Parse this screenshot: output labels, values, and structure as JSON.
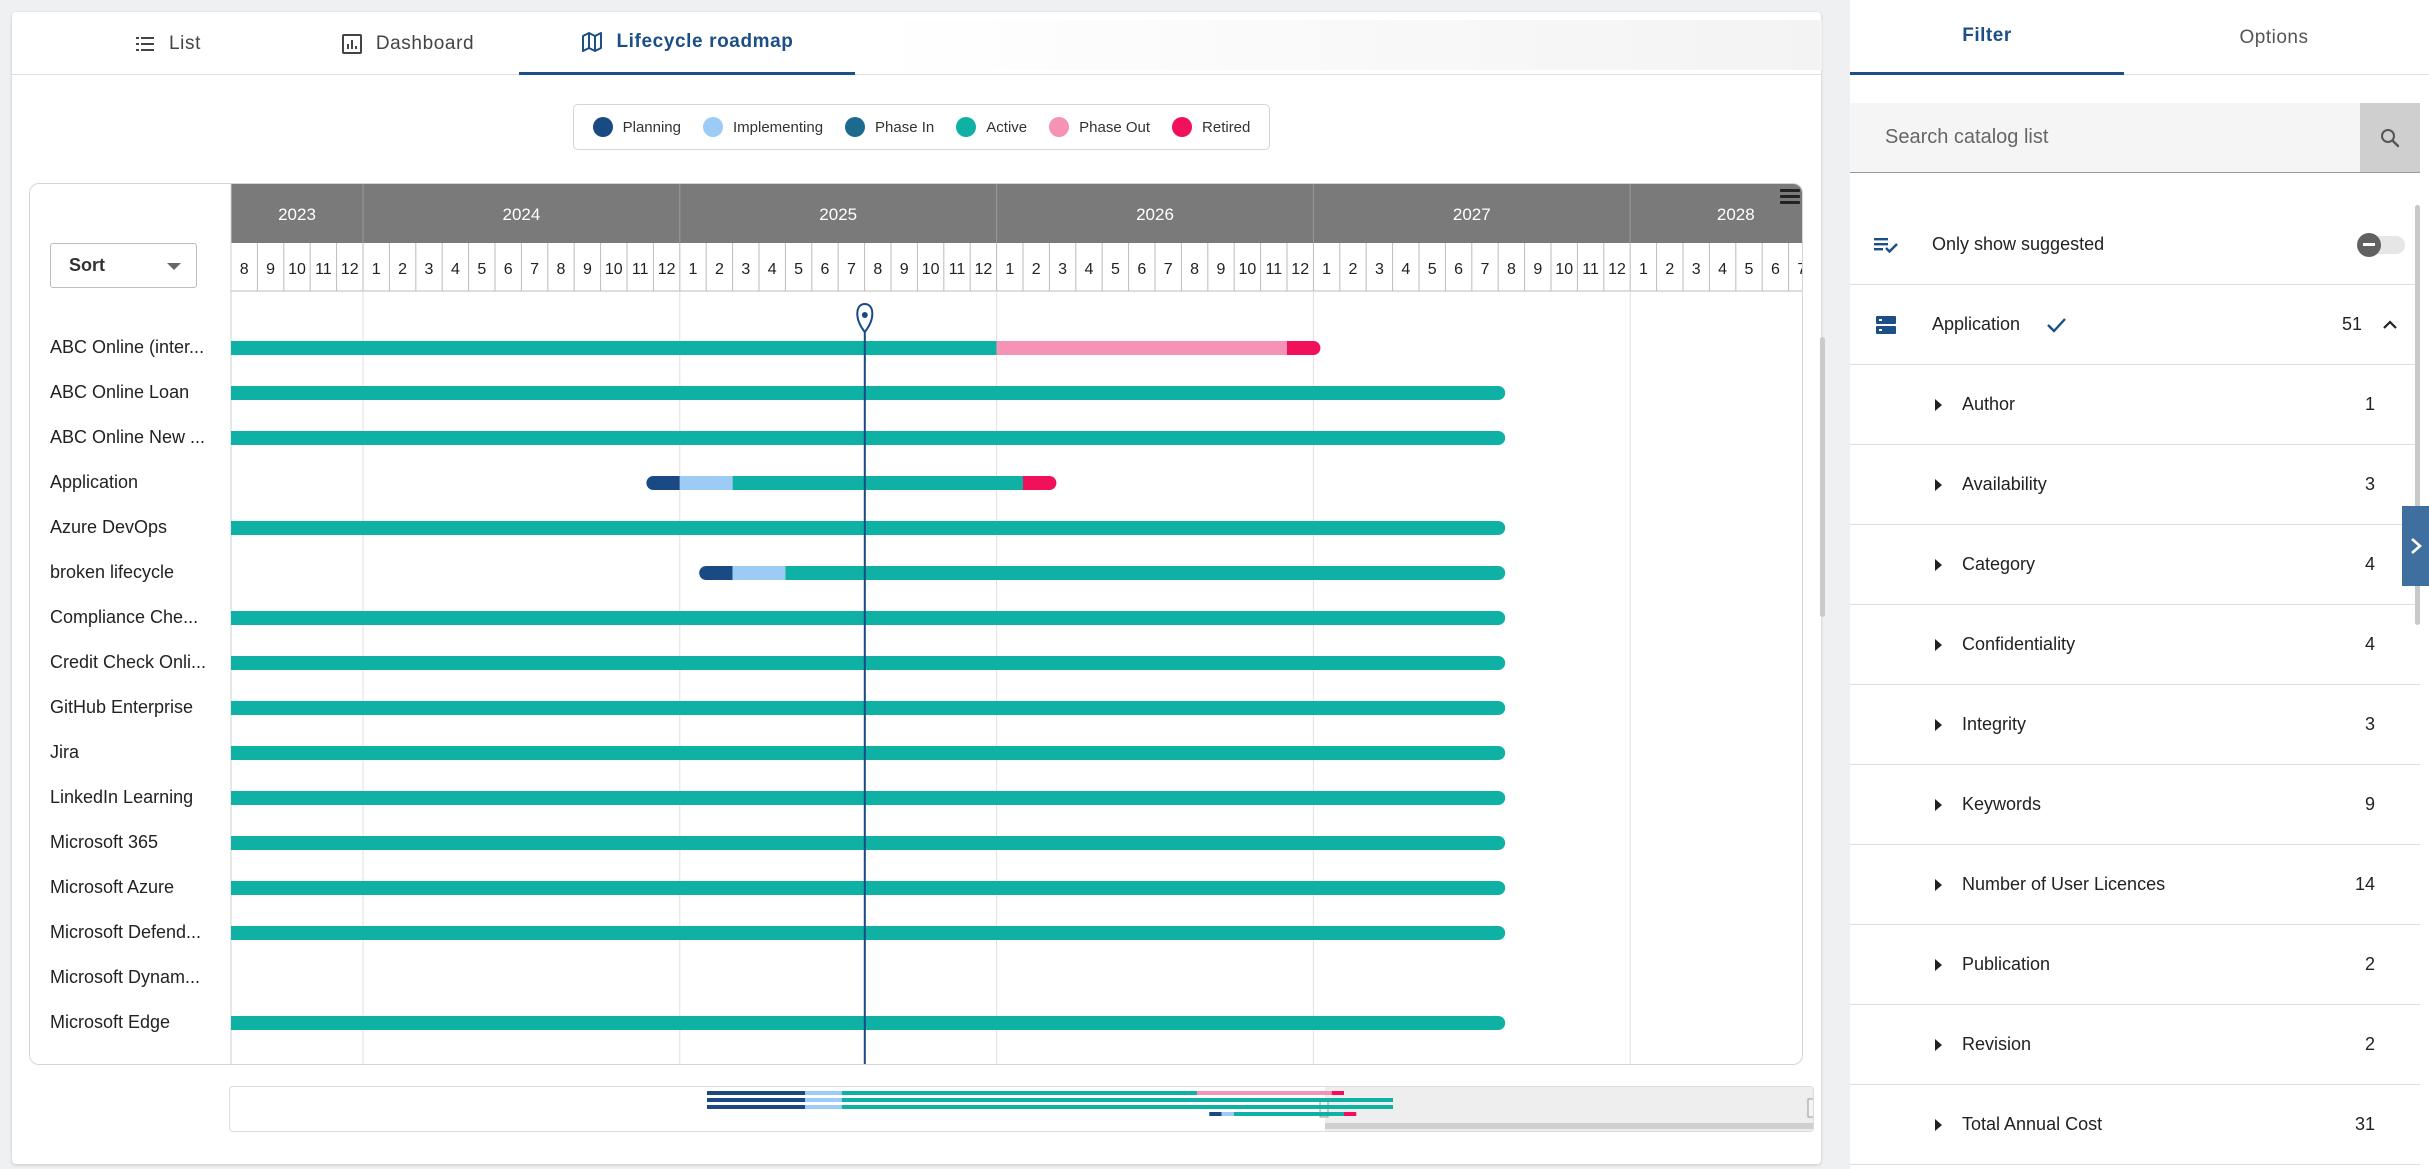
{
  "tabs": [
    {
      "label": "List",
      "icon": "list-icon"
    },
    {
      "label": "Dashboard",
      "icon": "dashboard-icon"
    },
    {
      "label": "Lifecycle roadmap",
      "icon": "map-icon",
      "active": true
    }
  ],
  "legend": [
    {
      "label": "Planning",
      "color": "#1a4a84"
    },
    {
      "label": "Implementing",
      "color": "#9ccbf5"
    },
    {
      "label": "Phase In",
      "color": "#1c6b8f"
    },
    {
      "label": "Active",
      "color": "#10b1a5"
    },
    {
      "label": "Phase Out",
      "color": "#f592b5"
    },
    {
      "label": "Retired",
      "color": "#f0115a"
    }
  ],
  "sort_label": "Sort",
  "timeline": {
    "years": [
      "2023",
      "2024",
      "2025",
      "2026",
      "2027",
      "2028"
    ],
    "start_year": 2023,
    "start_month": 8,
    "end_year": 2028,
    "end_month": 8,
    "today": "2025-08"
  },
  "rows": [
    {
      "label": "ABC Online (inter...",
      "segments": [
        {
          "phase": "Active",
          "from": "2023-08",
          "to": "2026-01"
        },
        {
          "phase": "Phase Out",
          "from": "2026-01",
          "to": "2026-12"
        },
        {
          "phase": "Retired",
          "from": "2026-12",
          "to": "2027-01"
        }
      ]
    },
    {
      "label": "ABC Online Loan",
      "segments": [
        {
          "phase": "Active",
          "from": "2023-08",
          "to": "2027-08"
        }
      ]
    },
    {
      "label": "ABC Online New ...",
      "segments": [
        {
          "phase": "Active",
          "from": "2023-08",
          "to": "2027-08"
        }
      ]
    },
    {
      "label": "Application",
      "segments": [
        {
          "phase": "Planning",
          "from": "2024-12",
          "to": "2025-01"
        },
        {
          "phase": "Implementing",
          "from": "2025-01",
          "to": "2025-03"
        },
        {
          "phase": "Active",
          "from": "2025-03",
          "to": "2026-02"
        },
        {
          "phase": "Retired",
          "from": "2026-02",
          "to": "2026-03"
        }
      ]
    },
    {
      "label": "Azure DevOps",
      "segments": [
        {
          "phase": "Active",
          "from": "2023-08",
          "to": "2027-08"
        }
      ]
    },
    {
      "label": "broken lifecycle",
      "segments": [
        {
          "phase": "Planning",
          "from": "2025-02",
          "to": "2025-03"
        },
        {
          "phase": "Implementing",
          "from": "2025-03",
          "to": "2025-05"
        },
        {
          "phase": "Active",
          "from": "2025-05",
          "to": "2027-08"
        }
      ]
    },
    {
      "label": "Compliance Che...",
      "segments": [
        {
          "phase": "Active",
          "from": "2023-08",
          "to": "2027-08"
        }
      ]
    },
    {
      "label": "Credit Check Onli...",
      "segments": [
        {
          "phase": "Active",
          "from": "2023-08",
          "to": "2027-08"
        }
      ]
    },
    {
      "label": "GitHub Enterprise",
      "segments": [
        {
          "phase": "Active",
          "from": "2023-08",
          "to": "2027-08"
        }
      ]
    },
    {
      "label": "Jira",
      "segments": [
        {
          "phase": "Active",
          "from": "2023-08",
          "to": "2027-08"
        }
      ]
    },
    {
      "label": "LinkedIn Learning",
      "segments": [
        {
          "phase": "Active",
          "from": "2023-08",
          "to": "2027-08"
        }
      ]
    },
    {
      "label": "Microsoft 365",
      "segments": [
        {
          "phase": "Active",
          "from": "2023-08",
          "to": "2027-08"
        }
      ]
    },
    {
      "label": "Microsoft Azure",
      "segments": [
        {
          "phase": "Active",
          "from": "2023-08",
          "to": "2027-08"
        }
      ]
    },
    {
      "label": "Microsoft Defend...",
      "segments": [
        {
          "phase": "Active",
          "from": "2023-08",
          "to": "2027-08"
        }
      ]
    },
    {
      "label": "Microsoft Dynam...",
      "segments": []
    },
    {
      "label": "Microsoft Edge",
      "segments": [
        {
          "phase": "Active",
          "from": "2023-08",
          "to": "2027-08"
        }
      ]
    }
  ],
  "side_tabs": [
    {
      "label": "Filter",
      "active": true
    },
    {
      "label": "Options"
    }
  ],
  "search": {
    "placeholder": "Search catalog list"
  },
  "suggested": {
    "label": "Only show suggested"
  },
  "application_filter": {
    "label": "Application",
    "count": "51"
  },
  "facets": [
    {
      "label": "Author",
      "count": "1"
    },
    {
      "label": "Availability",
      "count": "3"
    },
    {
      "label": "Category",
      "count": "4"
    },
    {
      "label": "Confidentiality",
      "count": "4"
    },
    {
      "label": "Integrity",
      "count": "3"
    },
    {
      "label": "Keywords",
      "count": "9"
    },
    {
      "label": "Number of User Licences",
      "count": "14"
    },
    {
      "label": "Publication",
      "count": "2"
    },
    {
      "label": "Revision",
      "count": "2"
    },
    {
      "label": "Total Annual Cost",
      "count": "31"
    }
  ]
}
